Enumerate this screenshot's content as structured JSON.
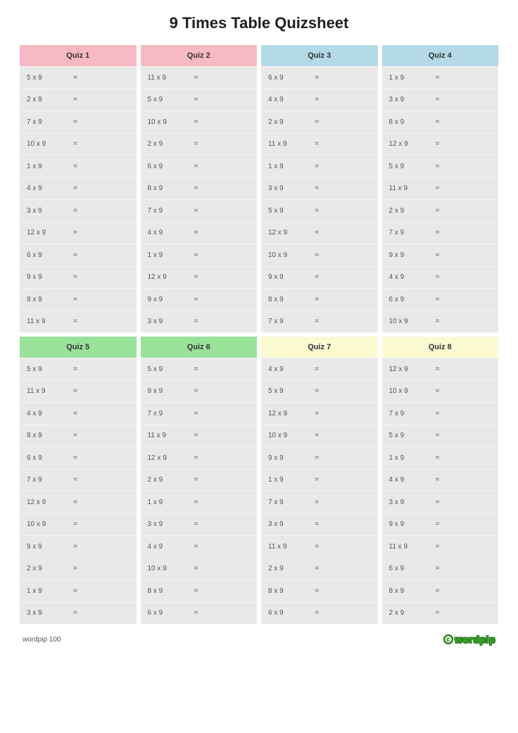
{
  "title": "9 Times Table Quizsheet",
  "footer_text": "wordpip 100",
  "logo_text": "wordpip",
  "logo_copyright": "c",
  "equals": "=",
  "header_colors": {
    "pink": "#f7b9c4",
    "blue": "#b4d9e7",
    "green": "#99e29a",
    "yellow": "#fcfad1"
  },
  "row_background": "#e9e9e9",
  "row_divider": "#f5f5f5",
  "quizzes": [
    {
      "label": "Quiz 1",
      "header_color": "pink",
      "questions": [
        "5 x 9",
        "2 x 9",
        "7 x 9",
        "10 x 9",
        "1 x 9",
        "4 x 9",
        "3 x 9",
        "12 x 9",
        "6 x 9",
        "9 x 9",
        "8 x 9",
        "11 x 9"
      ]
    },
    {
      "label": "Quiz 2",
      "header_color": "pink",
      "questions": [
        "11 x 9",
        "5 x 9",
        "10 x 9",
        "2 x 9",
        "6 x 9",
        "8 x 9",
        "7 x 9",
        "4 x 9",
        "1 x 9",
        "12 x 9",
        "9 x 9",
        "3 x 9"
      ]
    },
    {
      "label": "Quiz 3",
      "header_color": "blue",
      "questions": [
        "6 x 9",
        "4 x 9",
        "2 x 9",
        "11 x 9",
        "1 x 9",
        "3 x 9",
        "5 x 9",
        "12 x 9",
        "10 x 9",
        "9 x 9",
        "8 x 9",
        "7 x 9"
      ]
    },
    {
      "label": "Quiz 4",
      "header_color": "blue",
      "questions": [
        "1 x 9",
        "3 x 9",
        "8 x 9",
        "12 x 9",
        "5 x 9",
        "11 x 9",
        "2 x 9",
        "7 x 9",
        "9 x 9",
        "4 x 9",
        "6 x 9",
        "10 x 9"
      ]
    },
    {
      "label": "Quiz 5",
      "header_color": "green",
      "questions": [
        "5 x 9",
        "11 x 9",
        "4 x 9",
        "8 x 9",
        "6 x 9",
        "7 x 9",
        "12 x 9",
        "10 x 9",
        "9 x 9",
        "2 x 9",
        "1 x 9",
        "3 x 9"
      ]
    },
    {
      "label": "Quiz 6",
      "header_color": "green",
      "questions": [
        "5 x 9",
        "9 x 9",
        "7 x 9",
        "11 x 9",
        "12 x 9",
        "2 x 9",
        "1 x 9",
        "3 x 9",
        "4 x 9",
        "10 x 9",
        "8 x 9",
        "6 x 9"
      ]
    },
    {
      "label": "Quiz 7",
      "header_color": "yellow",
      "questions": [
        "4 x 9",
        "5 x 9",
        "12 x 9",
        "10 x 9",
        "9 x 9",
        "1 x 9",
        "7 x 9",
        "3 x 9",
        "11 x 9",
        "2 x 9",
        "8 x 9",
        "6 x 9"
      ]
    },
    {
      "label": "Quiz 8",
      "header_color": "yellow",
      "questions": [
        "12 x 9",
        "10 x 9",
        "7 x 9",
        "5 x 9",
        "1 x 9",
        "4 x 9",
        "3 x 9",
        "9 x 9",
        "11 x 9",
        "6 x 9",
        "8 x 9",
        "2 x 9"
      ]
    }
  ]
}
